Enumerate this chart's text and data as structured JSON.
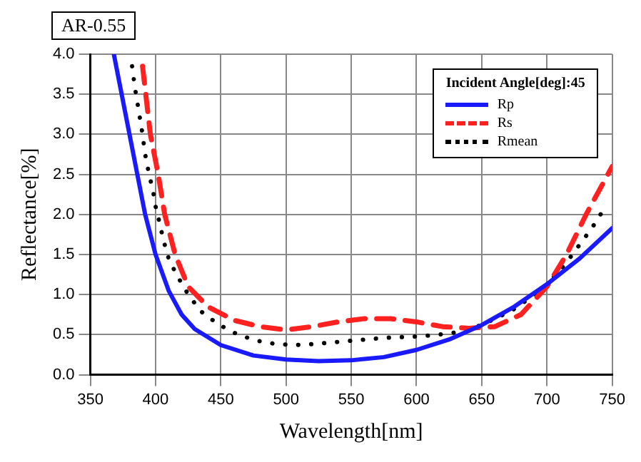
{
  "chart_data": {
    "type": "line",
    "title": "AR-0.55",
    "xlabel": "Wavelength[nm]",
    "ylabel": "Reflectance[%]",
    "legend_title": "Incident Angle[deg]:45",
    "legend": "top right",
    "grid": true,
    "marker": "none",
    "xlim": [
      350,
      750
    ],
    "xticks": [
      350,
      400,
      450,
      500,
      550,
      600,
      650,
      700,
      750
    ],
    "ylim": [
      0,
      4
    ],
    "yticks": [
      {
        "value": 0,
        "label": "0.0"
      },
      {
        "value": 0.5,
        "label": "0.5"
      },
      {
        "value": 1,
        "label": "1.0"
      },
      {
        "value": 1.5,
        "label": "1.5"
      },
      {
        "value": 2,
        "label": "2.0"
      },
      {
        "value": 2.5,
        "label": "2.5"
      },
      {
        "value": 3,
        "label": "3.0"
      },
      {
        "value": 3.5,
        "label": "3.5"
      },
      {
        "value": 4,
        "label": "4.0"
      }
    ],
    "series": [
      {
        "name": "Rp",
        "color": "#1a1aff",
        "line_style": "solid",
        "x": [
          368,
          380,
          392,
          400,
          410,
          420,
          430,
          450,
          475,
          500,
          525,
          550,
          575,
          600,
          625,
          650,
          675,
          700,
          725,
          750
        ],
        "values": [
          4.0,
          3.0,
          2.0,
          1.5,
          1.05,
          0.75,
          0.57,
          0.37,
          0.24,
          0.19,
          0.17,
          0.18,
          0.22,
          0.31,
          0.44,
          0.62,
          0.85,
          1.13,
          1.45,
          1.83
        ]
      },
      {
        "name": "Rs",
        "color": "#ff2020",
        "line_style": "dashed",
        "x": [
          390,
          396,
          402,
          407,
          415,
          425,
          440,
          460,
          480,
          500,
          520,
          540,
          560,
          580,
          600,
          620,
          640,
          660,
          680,
          700,
          715,
          730,
          740,
          750
        ],
        "values": [
          3.85,
          3.0,
          2.5,
          2.0,
          1.5,
          1.1,
          0.85,
          0.68,
          0.6,
          0.56,
          0.6,
          0.66,
          0.7,
          0.7,
          0.66,
          0.6,
          0.58,
          0.6,
          0.75,
          1.1,
          1.5,
          2.0,
          2.3,
          2.6
        ]
      },
      {
        "name": "Rmean",
        "color": "#000000",
        "line_style": "dotted",
        "x": [
          382,
          384,
          386,
          388,
          390,
          392,
          395,
          398,
          400,
          403,
          406,
          410,
          416,
          424,
          434,
          448,
          462,
          476,
          490,
          505,
          519,
          533,
          547,
          561,
          575,
          589,
          603,
          617,
          631,
          650,
          673,
          688,
          700,
          714,
          724,
          734,
          743
        ],
        "values": [
          3.85,
          3.6,
          3.4,
          3.2,
          3.0,
          2.75,
          2.5,
          2.3,
          2.1,
          1.9,
          1.68,
          1.45,
          1.25,
          1.03,
          0.8,
          0.63,
          0.51,
          0.43,
          0.39,
          0.37,
          0.38,
          0.4,
          0.42,
          0.44,
          0.46,
          0.47,
          0.48,
          0.5,
          0.53,
          0.62,
          0.8,
          0.97,
          1.13,
          1.38,
          1.6,
          1.82,
          2.05
        ]
      }
    ]
  }
}
